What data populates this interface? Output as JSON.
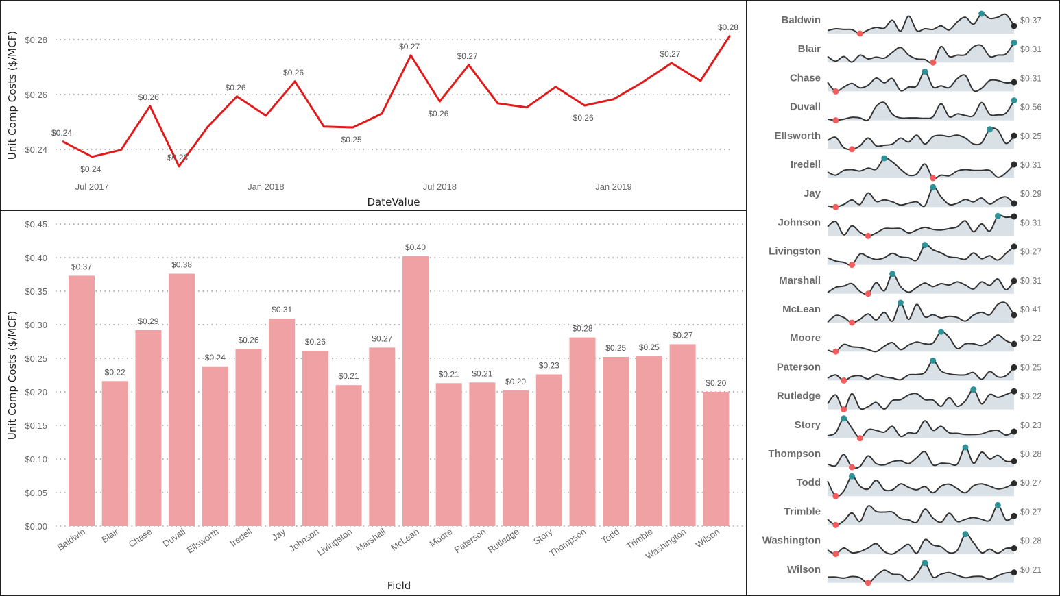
{
  "chart_data": [
    {
      "type": "line",
      "ylabel": "Unit Comp Costs ($/MCF)",
      "xlabel": "DateValue",
      "ylim": [
        0.23,
        0.285
      ],
      "y_ticks": [
        "$0.24",
        "$0.26",
        "$0.28"
      ],
      "y_tick_values": [
        0.24,
        0.26,
        0.28
      ],
      "x_ticks": [
        "Jul 2017",
        "Jan 2018",
        "Jul 2018",
        "Jan 2019"
      ],
      "x_tick_index": [
        1,
        7,
        13,
        19
      ],
      "grid": true,
      "line_color": "#e01b1b",
      "x": [
        "2017-06",
        "2017-07",
        "2017-08",
        "2017-09",
        "2017-10",
        "2017-11",
        "2017-12",
        "2018-01",
        "2018-02",
        "2018-03",
        "2018-04",
        "2018-05",
        "2018-06",
        "2018-07",
        "2018-08",
        "2018-09",
        "2018-10",
        "2018-11",
        "2018-12",
        "2019-01",
        "2019-02",
        "2019-03",
        "2019-04",
        "2019-05"
      ],
      "values": [
        0.2428,
        0.2373,
        0.2398,
        0.2558,
        0.2338,
        0.2483,
        0.2593,
        0.2523,
        0.2648,
        0.2483,
        0.248,
        0.253,
        0.2743,
        0.2575,
        0.2708,
        0.2568,
        0.2553,
        0.2628,
        0.256,
        0.2583,
        0.2645,
        0.2715,
        0.265,
        0.2813
      ],
      "data_labels": [
        {
          "index": 0,
          "text": "$0.24",
          "pos": "above"
        },
        {
          "index": 1,
          "text": "$0.24",
          "pos": "below"
        },
        {
          "index": 3,
          "text": "$0.26",
          "pos": "above"
        },
        {
          "index": 4,
          "text": "$0.23",
          "pos": "above"
        },
        {
          "index": 6,
          "text": "$0.26",
          "pos": "above"
        },
        {
          "index": 8,
          "text": "$0.26",
          "pos": "above"
        },
        {
          "index": 10,
          "text": "$0.25",
          "pos": "below"
        },
        {
          "index": 12,
          "text": "$0.27",
          "pos": "above"
        },
        {
          "index": 13,
          "text": "$0.26",
          "pos": "below"
        },
        {
          "index": 14,
          "text": "$0.27",
          "pos": "above"
        },
        {
          "index": 18,
          "text": "$0.26",
          "pos": "below"
        },
        {
          "index": 21,
          "text": "$0.27",
          "pos": "above"
        },
        {
          "index": 23,
          "text": "$0.28",
          "pos": "above"
        }
      ]
    },
    {
      "type": "bar",
      "ylabel": "Unit Comp Costs ($/MCF)",
      "xlabel": "Field",
      "ylim": [
        0,
        0.45
      ],
      "y_ticks": [
        "$0.00",
        "$0.05",
        "$0.10",
        "$0.15",
        "$0.20",
        "$0.25",
        "$0.30",
        "$0.35",
        "$0.40",
        "$0.45"
      ],
      "y_tick_values": [
        0,
        0.05,
        0.1,
        0.15,
        0.2,
        0.25,
        0.3,
        0.35,
        0.4,
        0.45
      ],
      "grid": true,
      "bar_color": "#f0a1a3",
      "categories": [
        "Baldwin",
        "Blair",
        "Chase",
        "Duvall",
        "Ellsworth",
        "Iredell",
        "Jay",
        "Johnson",
        "Livingston",
        "Marshall",
        "McLean",
        "Moore",
        "Paterson",
        "Rutledge",
        "Story",
        "Thompson",
        "Todd",
        "Trimble",
        "Washington",
        "Wilson"
      ],
      "values": [
        0.373,
        0.216,
        0.292,
        0.376,
        0.238,
        0.264,
        0.309,
        0.261,
        0.21,
        0.266,
        0.402,
        0.213,
        0.214,
        0.202,
        0.226,
        0.281,
        0.252,
        0.253,
        0.271,
        0.2
      ],
      "labels": [
        "$0.37",
        "$0.22",
        "$0.29",
        "$0.38",
        "$0.24",
        "$0.26",
        "$0.31",
        "$0.26",
        "$0.21",
        "$0.27",
        "$0.40",
        "$0.21",
        "$0.21",
        "$0.20",
        "$0.23",
        "$0.28",
        "$0.25",
        "$0.25",
        "$0.27",
        "$0.20"
      ]
    },
    {
      "type": "line",
      "variant": "sparklines",
      "fill_color": "#d9e1e6",
      "line_color": "#333333",
      "min_marker_color": "#f25c5c",
      "max_marker_color": "#2e9196",
      "last_marker_color": "#2b2b2b",
      "scale": "relative (0 = series min, 10 = series max)",
      "series": [
        {
          "name": "Baldwin",
          "value": "$0.37",
          "values": [
            1.5,
            2.4,
            2.1,
            2,
            0,
            1.8,
            3.1,
            2.7,
            6.7,
            1.2,
            8.8,
            1.5,
            2.4,
            2.1,
            3.9,
            1.8,
            5.9,
            8.2,
            4.7,
            10,
            7.6,
            8.2,
            9.6,
            3.8
          ]
        },
        {
          "name": "Blair",
          "value": "$0.31",
          "values": [
            3,
            0.6,
            3,
            0.2,
            3.7,
            1.8,
            2.7,
            2.2,
            5.1,
            7.6,
            3.7,
            1.8,
            1.5,
            0,
            8,
            3,
            3.7,
            3.9,
            7.9,
            8.5,
            3,
            3.7,
            4.3,
            10
          ]
        },
        {
          "name": "Chase",
          "value": "$0.31",
          "values": [
            4.6,
            0,
            2.2,
            4,
            1.8,
            3.1,
            6.7,
            4.3,
            6.4,
            0.4,
            2.2,
            2.8,
            10,
            2.2,
            2.8,
            1.9,
            6.4,
            8,
            0.4,
            1.6,
            5.5,
            5.5,
            4.3,
            4.6
          ]
        },
        {
          "name": "Duvall",
          "value": "$0.56",
          "values": [
            0.6,
            0,
            0.6,
            1.5,
            1.2,
            0.2,
            7.1,
            8.9,
            3,
            1.2,
            1.2,
            1.2,
            1,
            1.8,
            8.3,
            1.8,
            3.2,
            2.4,
            2.4,
            8.9,
            3,
            2.7,
            3.6,
            10
          ]
        },
        {
          "name": "Ellsworth",
          "value": "$0.25",
          "values": [
            4.4,
            6,
            0.8,
            0,
            1.7,
            5.6,
            1.7,
            2,
            2.6,
            5.6,
            3.6,
            7.1,
            2.6,
            6.4,
            7,
            6.4,
            7.1,
            5.6,
            2.6,
            3.2,
            10,
            9.5,
            2.9,
            6.8
          ]
        },
        {
          "name": "Iredell",
          "value": "$0.31",
          "values": [
            3.1,
            1.5,
            3.9,
            4.3,
            3.6,
            5.1,
            4.5,
            10,
            8.1,
            4.5,
            1.5,
            2.1,
            7.1,
            0,
            1.5,
            1.2,
            3.6,
            4.3,
            3.9,
            3.9,
            3.9,
            0.4,
            2.7,
            6.9
          ]
        },
        {
          "name": "Jay",
          "value": "$0.29",
          "values": [
            0.6,
            0,
            1.3,
            3.6,
            1.3,
            7.1,
            2.8,
            3.6,
            2.6,
            1,
            1.9,
            2.6,
            0.6,
            10,
            5.1,
            1.3,
            1.9,
            3.8,
            2.6,
            4.5,
            1.5,
            3.8,
            5.1,
            1.8
          ]
        },
        {
          "name": "Johnson",
          "value": "$0.31",
          "values": [
            4.6,
            7.3,
            0.6,
            5.1,
            1.8,
            0,
            1.5,
            3.7,
            3.7,
            3.7,
            1.5,
            3,
            4.3,
            3.3,
            3,
            3.7,
            4.6,
            7.6,
            2.1,
            6.1,
            2.4,
            10,
            9.4,
            9.8
          ]
        },
        {
          "name": "Livingston",
          "value": "$0.27",
          "values": [
            3.6,
            1.9,
            1.2,
            0,
            5.5,
            4,
            2.7,
            3.6,
            5.8,
            4,
            3.6,
            2.4,
            10,
            7.6,
            6,
            4,
            3.6,
            2.8,
            6,
            3.1,
            4.6,
            2.4,
            5.8,
            9.2
          ]
        },
        {
          "name": "Marshall",
          "value": "$0.31",
          "values": [
            0.6,
            3.2,
            3.9,
            5.1,
            1.2,
            0,
            5.6,
            1.5,
            10,
            3.6,
            0.8,
            3.2,
            5.4,
            3.6,
            5.1,
            4.4,
            6,
            4.4,
            2.4,
            6,
            4.2,
            7.5,
            2,
            6.5
          ]
        },
        {
          "name": "McLean",
          "value": "$0.41",
          "values": [
            0.2,
            3.6,
            2.6,
            0,
            1.7,
            4.4,
            1.4,
            5.2,
            0.8,
            10,
            1.7,
            9.2,
            2.9,
            4,
            2.4,
            3.2,
            2.6,
            0.8,
            3.8,
            5.2,
            4,
            9.2,
            9.8,
            3.8
          ]
        },
        {
          "name": "Moore",
          "value": "$0.22",
          "values": [
            0.7,
            0,
            3.6,
            2.4,
            2.1,
            1,
            0,
            2.7,
            4.5,
            1,
            3.3,
            4.8,
            3.9,
            4.3,
            10,
            7.1,
            1.5,
            3.9,
            3.9,
            3.1,
            5.1,
            8.3,
            5.5,
            3.8
          ]
        },
        {
          "name": "Paterson",
          "value": "$0.25",
          "values": [
            1.2,
            2.8,
            0,
            2,
            2.4,
            0.8,
            3,
            1.8,
            1.2,
            0.4,
            2.8,
            3,
            4,
            10,
            4.8,
            3.3,
            2.8,
            2.8,
            4,
            0.6,
            4.5,
            1.8,
            2.4,
            6.6
          ]
        },
        {
          "name": "Rutledge",
          "value": "$0.22",
          "values": [
            2.8,
            7.3,
            0,
            7.9,
            0.5,
            1.4,
            3.5,
            0.2,
            4.4,
            4.9,
            7.3,
            7.9,
            4.9,
            4.7,
            1.6,
            5.9,
            1.6,
            4.3,
            10,
            2.8,
            7.5,
            6.1,
            7.5,
            9.1
          ]
        },
        {
          "name": "Story",
          "value": "$0.23",
          "values": [
            1.3,
            2.8,
            10,
            5.1,
            0,
            4.3,
            4,
            3.1,
            6,
            1,
            2.8,
            2.8,
            8.8,
            4,
            6,
            2.8,
            2.5,
            1.9,
            1.9,
            2.2,
            3.6,
            4,
            1.6,
            3.4
          ]
        },
        {
          "name": "Thompson",
          "value": "$0.28",
          "values": [
            1.6,
            0.8,
            6.4,
            0,
            0.4,
            5.7,
            1.8,
            1.2,
            2.8,
            3.3,
            1.8,
            4.8,
            7.8,
            1.2,
            2,
            1.8,
            1.6,
            10,
            2,
            7.6,
            4.2,
            6,
            3,
            3
          ]
        },
        {
          "name": "Todd",
          "value": "$0.27",
          "values": [
            7.6,
            0,
            2.6,
            10,
            5,
            3.6,
            8,
            3.2,
            3.2,
            6.2,
            4.4,
            3.2,
            4.8,
            1.7,
            5,
            6,
            3.8,
            1.7,
            5.2,
            6.2,
            5,
            3.6,
            4.4,
            6.4
          ]
        },
        {
          "name": "Trimble",
          "value": "$0.27",
          "values": [
            2.9,
            0,
            2.1,
            6.1,
            1.8,
            9.6,
            6.8,
            6.5,
            6.5,
            3.3,
            2.6,
            1.4,
            8,
            3.5,
            1.4,
            5.9,
            1.8,
            2.9,
            3.8,
            2.9,
            2.4,
            10,
            2.6,
            4.5
          ]
        },
        {
          "name": "Washington",
          "value": "$0.28",
          "values": [
            2,
            0,
            3,
            0.6,
            1.2,
            3,
            5.2,
            1.2,
            0,
            2.4,
            4.8,
            0.4,
            7.2,
            4.5,
            3.6,
            0.6,
            1.8,
            10,
            5.7,
            0.6,
            2.4,
            0.4,
            2.8,
            2.8
          ]
        },
        {
          "name": "Wilson",
          "value": "$0.21",
          "values": [
            2.9,
            2.9,
            2.4,
            3.2,
            2.6,
            0,
            3.6,
            6.4,
            4.4,
            4,
            1.2,
            4.4,
            10,
            2.9,
            4.4,
            5.2,
            3.8,
            2.6,
            3.2,
            3.2,
            1.9,
            3.6,
            5,
            5.2
          ]
        }
      ]
    }
  ]
}
